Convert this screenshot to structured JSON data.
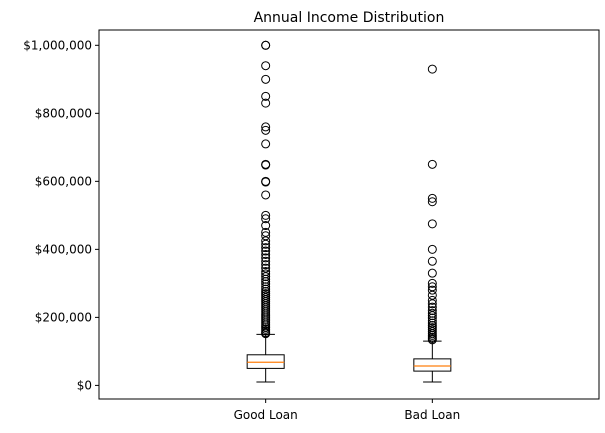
{
  "chart_data": {
    "type": "box",
    "title": "Annual Income Distribution",
    "xlabel": "",
    "ylabel": "",
    "ylim": [
      -40000,
      1045000
    ],
    "yticks": [
      0,
      200000,
      400000,
      600000,
      800000,
      1000000
    ],
    "ytick_labels": [
      "$0",
      "$200,000",
      "$400,000",
      "$600,000",
      "$800,000",
      "$1,000,000"
    ],
    "categories": [
      "Good Loan",
      "Bad Loan"
    ],
    "grid": false,
    "colors": {
      "box": "#000000",
      "median": "#ff7f0e",
      "flier": "#000000"
    },
    "boxes": [
      {
        "name": "Good Loan",
        "whisker_low": 10000,
        "q1": 50000,
        "median": 68000,
        "q3": 90000,
        "whisker_high": 150000,
        "outliers": [
          1000000,
          1000000,
          940000,
          900000,
          850000,
          830000,
          760000,
          750000,
          710000,
          650000,
          648000,
          600000,
          598000,
          560000,
          500000,
          490000,
          470000,
          450000,
          440000,
          425000,
          415000,
          405000,
          395000,
          385000,
          375000,
          365000,
          355000,
          345000,
          335000,
          328000,
          320000,
          312000,
          305000,
          298000,
          290000,
          283000,
          276000,
          270000,
          264000,
          258000,
          252000,
          246000,
          240000,
          234000,
          228000,
          222000,
          216000,
          210000,
          204000,
          198000,
          192000,
          186000,
          180000,
          175000,
          170000,
          165000,
          160000,
          155000,
          152000
        ]
      },
      {
        "name": "Bad Loan",
        "whisker_low": 10000,
        "q1": 42000,
        "median": 57000,
        "q3": 78000,
        "whisker_high": 130000,
        "outliers": [
          930000,
          650000,
          550000,
          540000,
          475000,
          400000,
          365000,
          330000,
          300000,
          290000,
          280000,
          265000,
          250000,
          240000,
          230000,
          220000,
          212000,
          205000,
          198000,
          190000,
          183000,
          176000,
          170000,
          164000,
          158000,
          152000,
          147000,
          142000,
          138000,
          134000
        ]
      }
    ]
  }
}
